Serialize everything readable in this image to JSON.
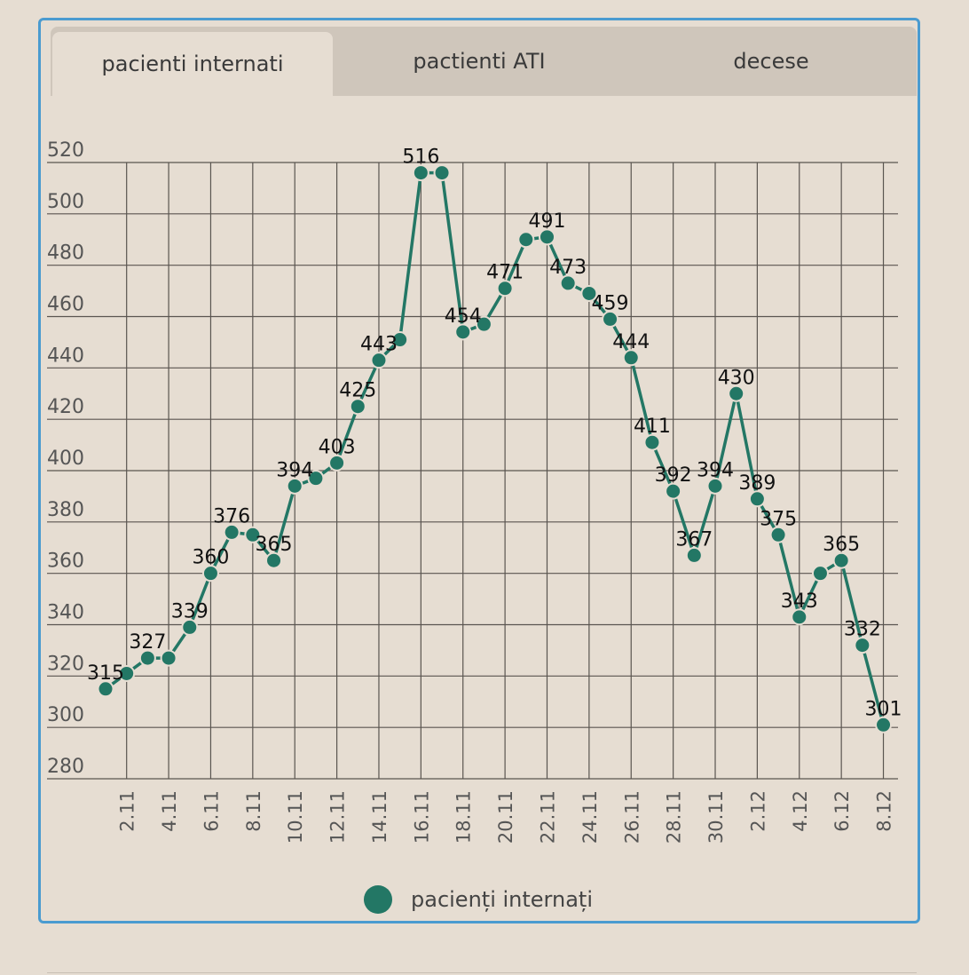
{
  "tabs": [
    {
      "label": "pacienti internati",
      "active": true
    },
    {
      "label": "pactienti ATI",
      "active": false
    },
    {
      "label": "decese",
      "active": false
    }
  ],
  "colors": {
    "series": "#237765",
    "grid": "#5a5550",
    "background": "#e6ddd2",
    "tabbar": "#cfc6bb",
    "border": "#4a9bd0"
  },
  "legend": {
    "label": "pacienți internați"
  },
  "chart_data": {
    "type": "line",
    "title": "",
    "xlabel": "",
    "ylabel": "",
    "ylim": [
      280,
      520
    ],
    "yticks": [
      280,
      300,
      320,
      340,
      360,
      380,
      400,
      420,
      440,
      460,
      480,
      500,
      520
    ],
    "categories": [
      "1.11",
      "2.11",
      "3.11",
      "4.11",
      "5.11",
      "6.11",
      "7.11",
      "8.11",
      "9.11",
      "10.11",
      "11.11",
      "12.11",
      "13.11",
      "14.11",
      "15.11",
      "16.11",
      "17.11",
      "18.11",
      "19.11",
      "20.11",
      "21.11",
      "22.11",
      "23.11",
      "24.11",
      "25.11",
      "26.11",
      "27.11",
      "28.11",
      "29.11",
      "30.11",
      "1.12",
      "2.12",
      "3.12",
      "4.12",
      "5.12",
      "6.12",
      "7.12",
      "8.12"
    ],
    "tick_labels": [
      "2.11",
      "4.11",
      "6.11",
      "8.11",
      "10.11",
      "12.11",
      "14.11",
      "16.11",
      "18.11",
      "20.11",
      "22.11",
      "24.11",
      "26.11",
      "28.11",
      "30.11",
      "2.12",
      "4.12",
      "6.12",
      "8.12"
    ],
    "series": [
      {
        "name": "pacienți internați",
        "values": [
          315,
          321,
          327,
          327,
          339,
          360,
          376,
          375,
          365,
          394,
          397,
          403,
          425,
          443,
          451,
          516,
          516,
          454,
          457,
          471,
          490,
          491,
          473,
          469,
          459,
          444,
          411,
          392,
          367,
          394,
          430,
          389,
          375,
          343,
          360,
          365,
          332,
          301
        ],
        "labels": [
          "315",
          null,
          "327",
          null,
          "339",
          "360",
          "376",
          null,
          "365",
          "394",
          null,
          "403",
          "425",
          "443",
          null,
          "516",
          null,
          "454",
          null,
          "471",
          null,
          "491",
          "473",
          null,
          "459",
          "444",
          "411",
          "392",
          "367",
          "394",
          "430",
          "389",
          "375",
          "343",
          null,
          "365",
          "332",
          "301"
        ]
      }
    ],
    "legend_position": "bottom"
  }
}
